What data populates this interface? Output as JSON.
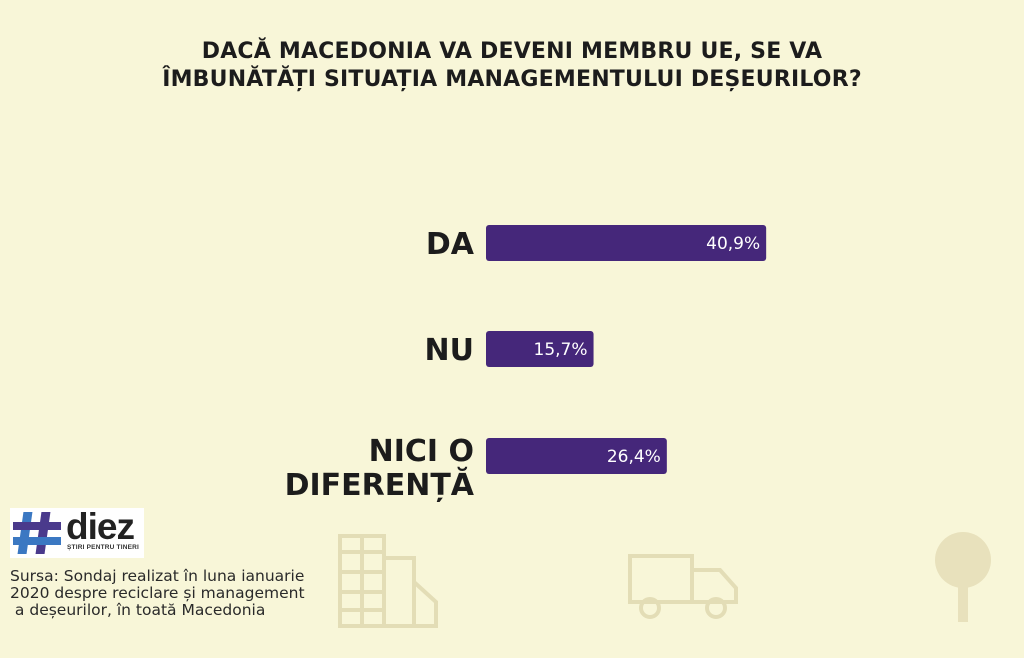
{
  "title_line1": "DACĂ MACEDONIA VA DEVENI MEMBRU UE, SE VA",
  "title_line2": "ÎMBUNĂTĂȚI SITUAȚIA MANAGEMENTULUI DEȘEURILOR?",
  "colors": {
    "bar": "#45277a",
    "background": "#f8f6d8",
    "text": "#1c1c1c",
    "bar_label": "#ffffff"
  },
  "chart_data": {
    "type": "bar",
    "orientation": "horizontal",
    "title": "DACĂ MACEDONIA VA DEVENI MEMBRU UE, SE VA ÎMBUNĂTĂȚI SITUAȚIA MANAGEMENTULUI DEȘEURILOR?",
    "categories": [
      [
        "DA"
      ],
      [
        "NU"
      ],
      [
        "NICI O",
        "DIFERENȚĂ"
      ]
    ],
    "values": [
      40.9,
      15.7,
      26.4
    ],
    "value_labels": [
      "40,9%",
      "15,7%",
      "26,4%"
    ],
    "xlim": [
      0,
      100
    ],
    "grid": false,
    "legend": "none"
  },
  "logo": {
    "word": "diez",
    "tagline": "ȘTIRI PENTRU TINERI"
  },
  "source_text": "Sursa: Sondaj realizat în luna ianuarie\n2020 despre reciclare și management\n a deșeurilor, în toată Macedonia",
  "decor_icons": [
    "building-icon",
    "truck-icon",
    "tree-icon"
  ]
}
